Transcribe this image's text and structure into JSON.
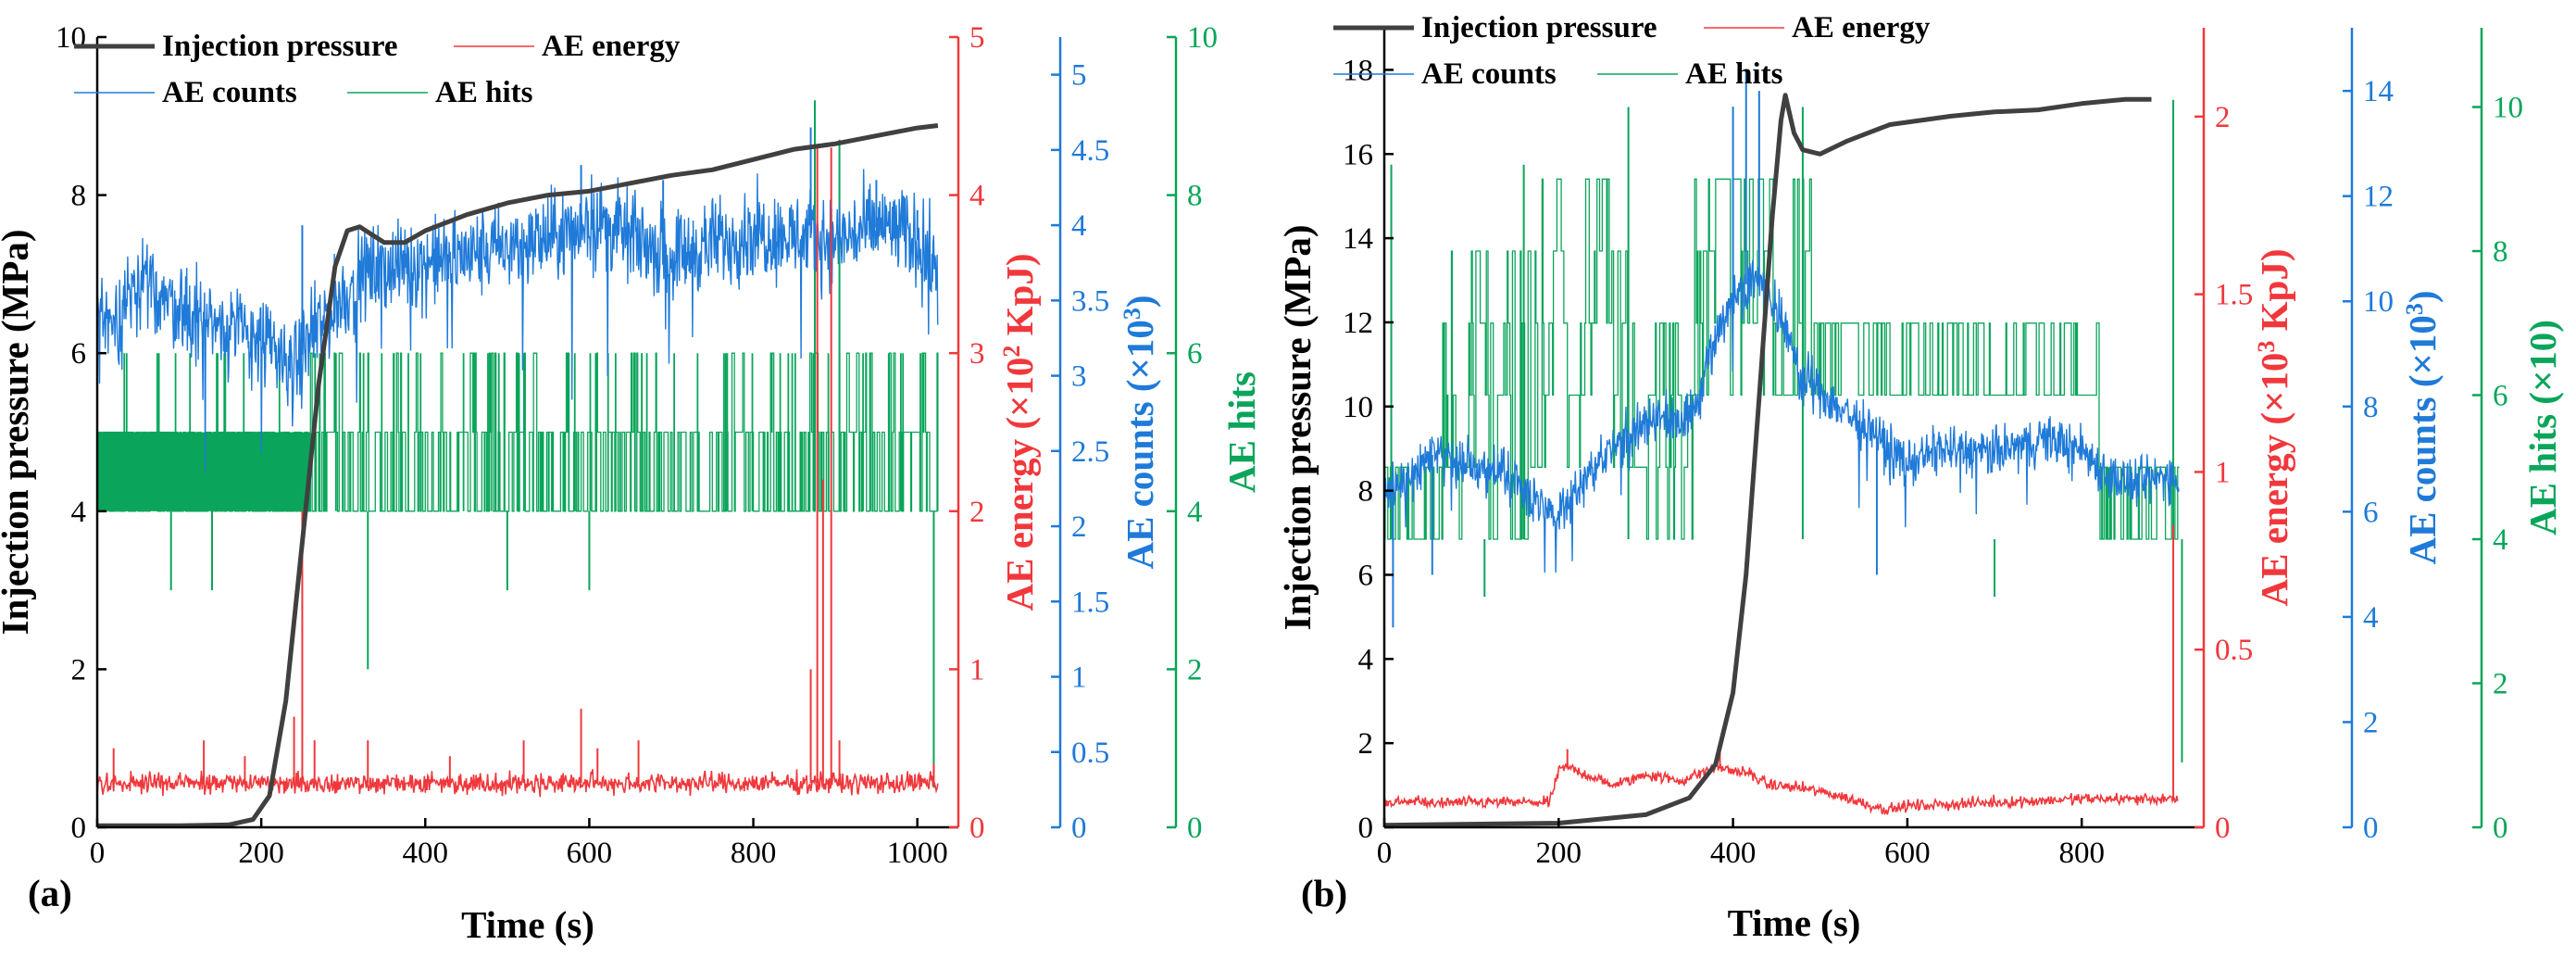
{
  "colors": {
    "pressure": "#404040",
    "energy": "#f0383c",
    "counts": "#1f7ad8",
    "hits": "#0aa55a",
    "axis": "#000000"
  },
  "chart_data": [
    {
      "type": "line",
      "panel_label": "(a)",
      "xlabel": "Time (s)",
      "xlim": [
        0,
        1050
      ],
      "x_ticks": [
        0,
        200,
        400,
        600,
        800,
        1000
      ],
      "legend": {
        "placement": "top-left",
        "entries": [
          "Injection pressure",
          "AE energy",
          "AE counts",
          "AE hits"
        ]
      },
      "axes": [
        {
          "id": "pressure",
          "label": "Injection pressure (MPa)",
          "lim": [
            0,
            10
          ],
          "ticks": [
            "0",
            "2",
            "4",
            "6",
            "8",
            "10"
          ],
          "color": "#000000"
        },
        {
          "id": "energy",
          "label_parts": [
            "AE energy (×10",
            "2",
            " KpJ)"
          ],
          "lim": [
            0,
            5
          ],
          "ticks": [
            "0",
            "1",
            "2",
            "3",
            "4",
            "5"
          ],
          "color": "#f0383c"
        },
        {
          "id": "counts",
          "label_parts": [
            "AE counts (×10",
            "3",
            ")"
          ],
          "lim": [
            0,
            5.25
          ],
          "ticks": [
            "0",
            "0.5",
            "1",
            "1.5",
            "2",
            "2.5",
            "3",
            "3.5",
            "4",
            "4.5",
            "5"
          ],
          "color": "#1f7ad8"
        },
        {
          "id": "hits",
          "label": "AE hits",
          "lim": [
            0,
            10
          ],
          "ticks": [
            "0",
            "2",
            "4",
            "6",
            "8",
            "10"
          ],
          "color": "#0aa55a"
        }
      ],
      "series": [
        {
          "name": "Injection pressure",
          "axis": "pressure",
          "x": [
            0,
            100,
            160,
            190,
            210,
            230,
            250,
            270,
            290,
            305,
            320,
            335,
            350,
            375,
            400,
            450,
            500,
            550,
            600,
            650,
            700,
            750,
            800,
            850,
            900,
            950,
            1000,
            1025
          ],
          "y": [
            0.02,
            0.02,
            0.03,
            0.1,
            0.4,
            1.6,
            3.6,
            5.6,
            7.1,
            7.55,
            7.6,
            7.5,
            7.4,
            7.4,
            7.55,
            7.75,
            7.9,
            8.0,
            8.05,
            8.15,
            8.25,
            8.32,
            8.45,
            8.58,
            8.65,
            8.75,
            8.85,
            8.88
          ]
        },
        {
          "name": "AE energy",
          "axis": "energy",
          "baseline": 0.28,
          "noise": 0.05,
          "x_end": 1025,
          "spikes": [
            [
              20,
              0.5
            ],
            [
              130,
              0.55
            ],
            [
              180,
              0.45
            ],
            [
              240,
              0.7
            ],
            [
              250,
              2.0
            ],
            [
              265,
              0.55
            ],
            [
              330,
              0.55
            ],
            [
              430,
              0.45
            ],
            [
              520,
              0.55
            ],
            [
              590,
              0.75
            ],
            [
              610,
              0.5
            ],
            [
              660,
              0.55
            ],
            [
              870,
              1.0
            ],
            [
              878,
              4.3
            ],
            [
              885,
              2.2
            ],
            [
              895,
              4.3
            ],
            [
              905,
              0.55
            ],
            [
              1020,
              0.4
            ]
          ]
        },
        {
          "name": "AE counts",
          "axis": "counts",
          "x_end": 1025,
          "noise": 0.22,
          "envelope_x": [
            0,
            10,
            60,
            120,
            200,
            240,
            280,
            330,
            400,
            500,
            580,
            600,
            700,
            800,
            900,
            960,
            1000,
            1025
          ],
          "envelope_y": [
            3.6,
            3.3,
            3.6,
            3.4,
            3.25,
            3.05,
            3.4,
            3.7,
            3.75,
            3.85,
            3.95,
            4.05,
            3.8,
            3.95,
            3.9,
            4.0,
            3.9,
            3.7
          ],
          "spikes": [
            [
              250,
              4.0
            ],
            [
              590,
              4.4
            ],
            [
              690,
              4.3
            ],
            [
              870,
              4.65
            ],
            [
              950,
              4.3
            ],
            [
              1000,
              4.1
            ]
          ]
        },
        {
          "name": "AE hits",
          "axis": "hits",
          "x_end": 1025,
          "band_low": 4,
          "band_high": 5,
          "band_dense_until": 260,
          "mid_levels": [
            4,
            5,
            6
          ],
          "spikes_high": [
            [
              875,
              9.2
            ],
            [
              905,
              8.7
            ]
          ],
          "spikes_low": [
            [
              90,
              3.0
            ],
            [
              140,
              3.0
            ],
            [
              330,
              2.0
            ],
            [
              500,
              3.0
            ],
            [
              600,
              3.0
            ],
            [
              1020,
              0.5
            ]
          ]
        }
      ]
    },
    {
      "type": "line",
      "panel_label": "(b)",
      "xlabel": "Time (s)",
      "xlim": [
        0,
        940
      ],
      "x_ticks": [
        0,
        200,
        400,
        600,
        800
      ],
      "legend": {
        "placement": "top",
        "entries": [
          "Injection pressure",
          "AE energy",
          "AE counts",
          "AE hits"
        ]
      },
      "axes": [
        {
          "id": "pressure",
          "label": "Injection pressure (MPa)",
          "lim": [
            0,
            19
          ],
          "ticks": [
            "0",
            "2",
            "4",
            "6",
            "8",
            "10",
            "12",
            "14",
            "16",
            "18"
          ],
          "color": "#000000"
        },
        {
          "id": "energy",
          "label_parts": [
            "AE energy (×10",
            "3",
            " KpJ)"
          ],
          "lim": [
            0,
            2.25
          ],
          "ticks": [
            "0",
            "0.5",
            "1",
            "1.5",
            "2"
          ],
          "color": "#f0383c"
        },
        {
          "id": "counts",
          "label_parts": [
            "AE counts (×10",
            "3",
            ")"
          ],
          "lim": [
            0,
            15.2
          ],
          "ticks": [
            "0",
            "2",
            "4",
            "6",
            "8",
            "10",
            "12",
            "14"
          ],
          "color": "#1f7ad8"
        },
        {
          "id": "hits",
          "label_parts": [
            "AE hits (×10)"
          ],
          "lim": [
            0,
            11.1
          ],
          "ticks": [
            "0",
            "2",
            "4",
            "6",
            "8",
            "10"
          ],
          "color": "#0aa55a"
        }
      ],
      "series": [
        {
          "name": "Injection pressure",
          "axis": "pressure",
          "x": [
            0,
            200,
            300,
            350,
            380,
            400,
            415,
            430,
            445,
            455,
            460,
            470,
            480,
            500,
            530,
            580,
            650,
            700,
            750,
            800,
            850,
            880
          ],
          "y": [
            0.05,
            0.1,
            0.3,
            0.7,
            1.5,
            3.2,
            6.0,
            10.2,
            14.5,
            16.8,
            17.4,
            16.5,
            16.1,
            16.0,
            16.3,
            16.7,
            16.9,
            17.0,
            17.05,
            17.2,
            17.3,
            17.3
          ]
        },
        {
          "name": "AE energy",
          "axis": "energy",
          "x": [
            0,
            190,
            200,
            210,
            240,
            260,
            280,
            300,
            340,
            380,
            420,
            440,
            480,
            520,
            560,
            580,
            600,
            700,
            800,
            900,
            910
          ],
          "y": [
            0.07,
            0.07,
            0.16,
            0.17,
            0.14,
            0.12,
            0.13,
            0.15,
            0.13,
            0.17,
            0.15,
            0.12,
            0.11,
            0.09,
            0.06,
            0.05,
            0.06,
            0.07,
            0.08,
            0.08,
            0.07
          ],
          "noise": 0.012,
          "spikes": [
            [
              210,
              0.22
            ],
            [
              385,
              0.23
            ],
            [
              905,
              0.85
            ]
          ]
        },
        {
          "name": "AE counts",
          "axis": "counts",
          "x_end": 912,
          "noise": 0.35,
          "envelope_x": [
            0,
            20,
            50,
            100,
            150,
            180,
            200,
            260,
            320,
            340,
            360,
            380,
            400,
            420,
            440,
            460,
            480,
            520,
            560,
            600,
            640,
            700,
            760,
            800,
            830,
            860,
            900,
            912
          ],
          "envelope_y": [
            6.3,
            6.6,
            7.1,
            6.9,
            6.6,
            6.1,
            6.0,
            7.2,
            7.9,
            7.6,
            8.2,
            9.3,
            10.1,
            10.4,
            10.3,
            9.4,
            8.6,
            8.0,
            7.5,
            6.9,
            7.2,
            7.1,
            7.4,
            7.2,
            6.7,
            6.5,
            6.7,
            6.6
          ],
          "spikes": [
            [
              10,
              3.8
            ],
            [
              55,
              4.8
            ],
            [
              400,
              13.7
            ],
            [
              415,
              14.4
            ],
            [
              430,
              14.0
            ],
            [
              565,
              4.8
            ]
          ]
        },
        {
          "name": "AE hits",
          "axis": "hits",
          "x_end": 912,
          "levels": [
            4,
            5,
            6,
            7,
            8,
            9
          ],
          "segments": [
            [
              0,
              60,
              4,
              5
            ],
            [
              60,
              180,
              4,
              8
            ],
            [
              180,
              280,
              5,
              9
            ],
            [
              280,
              355,
              4,
              7
            ],
            [
              355,
              490,
              6,
              9
            ],
            [
              490,
              820,
              6,
              7
            ],
            [
              820,
              912,
              4,
              5
            ]
          ],
          "spikes_high": [
            [
              8,
              9.2
            ],
            [
              160,
              9.2
            ],
            [
              280,
              10.0
            ],
            [
              480,
              10.0
            ],
            [
              905,
              10.1
            ]
          ],
          "spikes_low": [
            [
              115,
              3.2
            ],
            [
              700,
              3.2
            ],
            [
              915,
              0.9
            ]
          ]
        }
      ]
    }
  ]
}
